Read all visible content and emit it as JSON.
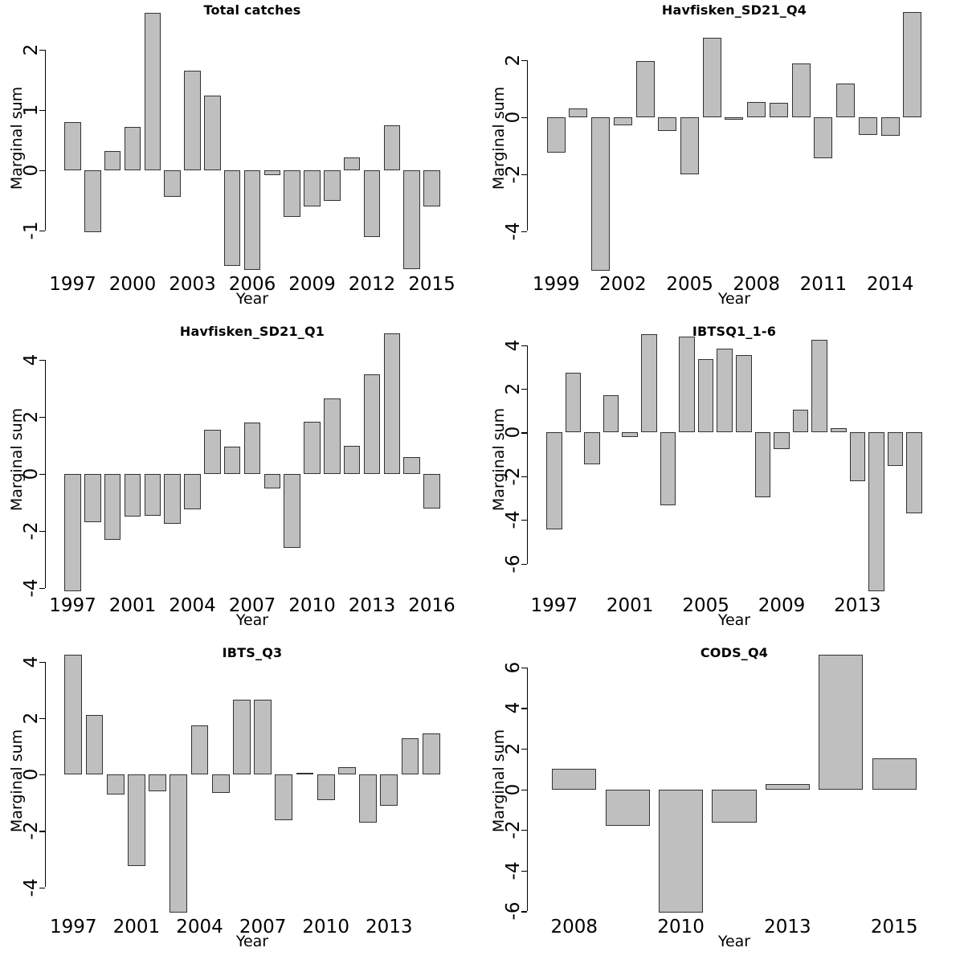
{
  "figure": {
    "background": "#ffffff",
    "text_color": "#000000",
    "bar_fill": "#bfbfbf",
    "bar_border": "#333333",
    "axis_color": "#000000",
    "ylabel": "Marginal sum",
    "xlabel": "Year"
  },
  "chart_data": [
    {
      "type": "bar",
      "title": "Total catches",
      "xlabel": "Year",
      "ylabel": "Marginal sum",
      "years": [
        1997,
        1998,
        1999,
        2000,
        2001,
        2002,
        2003,
        2004,
        2005,
        2006,
        2007,
        2008,
        2009,
        2010,
        2011,
        2012,
        2013,
        2014,
        2015
      ],
      "values": [
        0.8,
        -1.02,
        0.32,
        0.72,
        2.62,
        -0.44,
        1.66,
        1.24,
        -1.58,
        -1.65,
        -0.08,
        -0.77,
        -0.6,
        -0.5,
        0.22,
        -1.1,
        0.75,
        -1.64,
        -0.6
      ],
      "ylim": [
        -1.72,
        2.8
      ],
      "yticks": [
        -1,
        0,
        1,
        2
      ],
      "xticks": [
        {
          "bar": 0,
          "label": "1997"
        },
        {
          "bar": 3,
          "label": "2000"
        },
        {
          "bar": 6,
          "label": "2003"
        },
        {
          "bar": 9,
          "label": "2006"
        },
        {
          "bar": 12,
          "label": "2009"
        },
        {
          "bar": 15,
          "label": "2012"
        },
        {
          "bar": 18,
          "label": "2015"
        }
      ],
      "grid": false,
      "legend": null
    },
    {
      "type": "bar",
      "title": "Havfisken_SD21_Q4",
      "xlabel": "Year",
      "ylabel": "Marginal sum",
      "years": [
        1999,
        2000,
        2001,
        2002,
        2003,
        2004,
        2005,
        2006,
        2007,
        2008,
        2009,
        2010,
        2011,
        2012,
        2013,
        2014,
        2015
      ],
      "values": [
        -1.25,
        0.3,
        -5.4,
        -0.28,
        1.97,
        -0.48,
        -2.0,
        2.8,
        -0.07,
        0.55,
        0.5,
        1.9,
        -1.44,
        1.2,
        -0.63,
        -0.65,
        3.7
      ],
      "ylim": [
        -5.51,
        4.07
      ],
      "yticks": [
        -4,
        -2,
        0,
        2
      ],
      "xticks": [
        {
          "bar": 0,
          "label": "1999"
        },
        {
          "bar": 3,
          "label": "2002"
        },
        {
          "bar": 6,
          "label": "2005"
        },
        {
          "bar": 9,
          "label": "2008"
        },
        {
          "bar": 12,
          "label": "2011"
        },
        {
          "bar": 15,
          "label": "2014"
        }
      ],
      "grid": false,
      "legend": null
    },
    {
      "type": "bar",
      "title": "Havfisken_SD21_Q1",
      "xlabel": "Year",
      "ylabel": "Marginal sum",
      "values": [
        -4.11,
        -1.7,
        -2.3,
        -1.5,
        -1.45,
        -1.75,
        -1.25,
        1.55,
        0.97,
        1.8,
        -0.5,
        -2.6,
        1.85,
        2.65,
        1.0,
        3.5,
        4.93,
        0.6,
        -1.2
      ],
      "ylim": [
        -4.25,
        5.3
      ],
      "yticks": [
        -4,
        -2,
        0,
        2,
        4
      ],
      "xticks": [
        {
          "bar": 0,
          "label": "1997"
        },
        {
          "bar": 3,
          "label": "2001"
        },
        {
          "bar": 6,
          "label": "2004"
        },
        {
          "bar": 9,
          "label": "2007"
        },
        {
          "bar": 12,
          "label": "2010"
        },
        {
          "bar": 15,
          "label": "2013"
        },
        {
          "bar": 18,
          "label": "2016"
        }
      ],
      "grid": false,
      "legend": null
    },
    {
      "type": "bar",
      "title": "IBTSQ1_1-6",
      "xlabel": "Year",
      "ylabel": "Marginal sum",
      "years": [
        1997,
        1998,
        1999,
        2000,
        2001,
        2002,
        2003,
        2004,
        2005,
        2006,
        2007,
        2008,
        2009,
        2010,
        2011,
        2012,
        2013,
        2014,
        2015,
        2016
      ],
      "values": [
        -4.45,
        2.75,
        -1.47,
        1.71,
        -0.2,
        4.5,
        -3.35,
        4.4,
        3.35,
        3.85,
        3.55,
        -2.95,
        -0.75,
        1.05,
        4.25,
        0.2,
        -2.22,
        -7.27,
        -1.55,
        -3.7
      ],
      "ylim": [
        -7.45,
        5.01
      ],
      "yticks": [
        -6,
        -4,
        -2,
        0,
        2,
        4
      ],
      "xticks": [
        {
          "bar": 0,
          "label": "1997"
        },
        {
          "bar": 4,
          "label": "2001"
        },
        {
          "bar": 8,
          "label": "2005"
        },
        {
          "bar": 12,
          "label": "2009"
        },
        {
          "bar": 16,
          "label": "2013"
        }
      ],
      "grid": false,
      "legend": null
    },
    {
      "type": "bar",
      "title": "IBTS_Q3",
      "xlabel": "Year",
      "ylabel": "Marginal sum",
      "values": [
        4.25,
        2.12,
        -0.72,
        -3.25,
        -0.6,
        -4.9,
        1.74,
        -0.65,
        2.65,
        2.65,
        -1.63,
        0.05,
        -0.92,
        0.26,
        -1.7,
        -1.12,
        1.3,
        1.46
      ],
      "ylim": [
        -5.04,
        4.62
      ],
      "yticks": [
        -4,
        -2,
        0,
        2,
        4
      ],
      "xticks": [
        {
          "bar": 0,
          "label": "1997"
        },
        {
          "bar": 3,
          "label": "2001"
        },
        {
          "bar": 6,
          "label": "2004"
        },
        {
          "bar": 9,
          "label": "2007"
        },
        {
          "bar": 12,
          "label": "2010"
        },
        {
          "bar": 15,
          "label": "2013"
        }
      ],
      "grid": false,
      "legend": null
    },
    {
      "type": "bar",
      "title": "CODS_Q4",
      "xlabel": "Year",
      "ylabel": "Marginal sum",
      "values": [
        1.0,
        -1.8,
        -6.05,
        -1.65,
        0.28,
        6.63,
        1.53
      ],
      "ylim": [
        -6.26,
        7.14
      ],
      "yticks": [
        -6,
        -4,
        -2,
        0,
        2,
        4,
        6
      ],
      "xticks": [
        {
          "bar": 0,
          "label": "2008"
        },
        {
          "bar": 2,
          "label": "2010"
        },
        {
          "bar": 4,
          "label": "2013"
        },
        {
          "bar": 6,
          "label": "2015"
        }
      ],
      "grid": false,
      "legend": null
    }
  ]
}
